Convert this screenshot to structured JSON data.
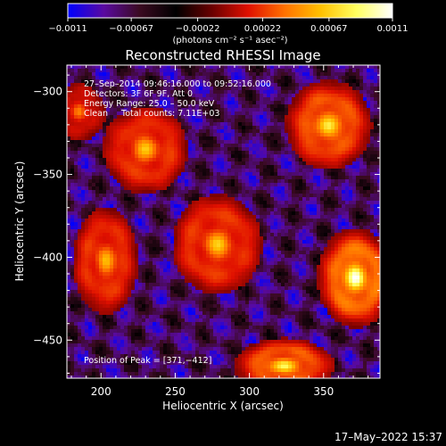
{
  "colorbar": {
    "min": -0.0011,
    "max": 0.0011,
    "tick_labels": [
      "−0.0011",
      "−0.00067",
      "−0.00022",
      "0.00022",
      "0.00067",
      "0.0011"
    ],
    "tick_values": [
      -0.0011,
      -0.00067,
      -0.00022,
      0.00022,
      0.00067,
      0.0011
    ],
    "unit_label": "(photons cm⁻² s⁻¹ asec⁻²)",
    "colors": [
      "#0000ff",
      "#5a0aa0",
      "#3a0a20",
      "#000000",
      "#6a0000",
      "#e01000",
      "#ff7000",
      "#ffc000",
      "#ffff60",
      "#ffffff"
    ]
  },
  "chart_data": {
    "type": "heatmap",
    "title": "Reconstructed RHESSI Image",
    "xlabel": "Heliocentric X (arcsec)",
    "ylabel": "Heliocentric Y (arcsec)",
    "xlim": [
      177,
      388
    ],
    "ylim": [
      -473,
      -284
    ],
    "x_ticks": [
      200,
      250,
      300,
      350
    ],
    "y_ticks": [
      -300,
      -350,
      -400,
      -450
    ],
    "x_tick_labels": [
      "200",
      "250",
      "300",
      "350"
    ],
    "y_tick_labels": [
      "−300",
      "−350",
      "−400",
      "−450"
    ],
    "grid": false,
    "annotations": [
      "27–Sep–2014 09:46:16.000 to 09:52:16.000",
      "Detectors: 3F 6F 9F, Att 0",
      "Energy Range: 25.0 – 50.0 keV",
      "Clean     Total counts: 7.11E+03"
    ],
    "peak_label": "Position of Peak = [371,−412]",
    "peak": [
      371,
      -412
    ],
    "sources": [
      {
        "x": 371,
        "y": -412,
        "sx": 12,
        "sy": 14,
        "amp": 1.0
      },
      {
        "x": 353,
        "y": -320,
        "sx": 14,
        "sy": 13,
        "amp": 0.78
      },
      {
        "x": 323,
        "y": -465,
        "sx": 16,
        "sy": 8,
        "amp": 0.82
      },
      {
        "x": 278,
        "y": -392,
        "sx": 15,
        "sy": 15,
        "amp": 0.62
      },
      {
        "x": 230,
        "y": -335,
        "sx": 14,
        "sy": 13,
        "amp": 0.62
      },
      {
        "x": 203,
        "y": -402,
        "sx": 11,
        "sy": 16,
        "amp": 0.6
      },
      {
        "x": 185,
        "y": -312,
        "sx": 9,
        "sy": 9,
        "amp": 0.4
      }
    ]
  },
  "footer": {
    "date": "17–May–2022 15:37"
  }
}
